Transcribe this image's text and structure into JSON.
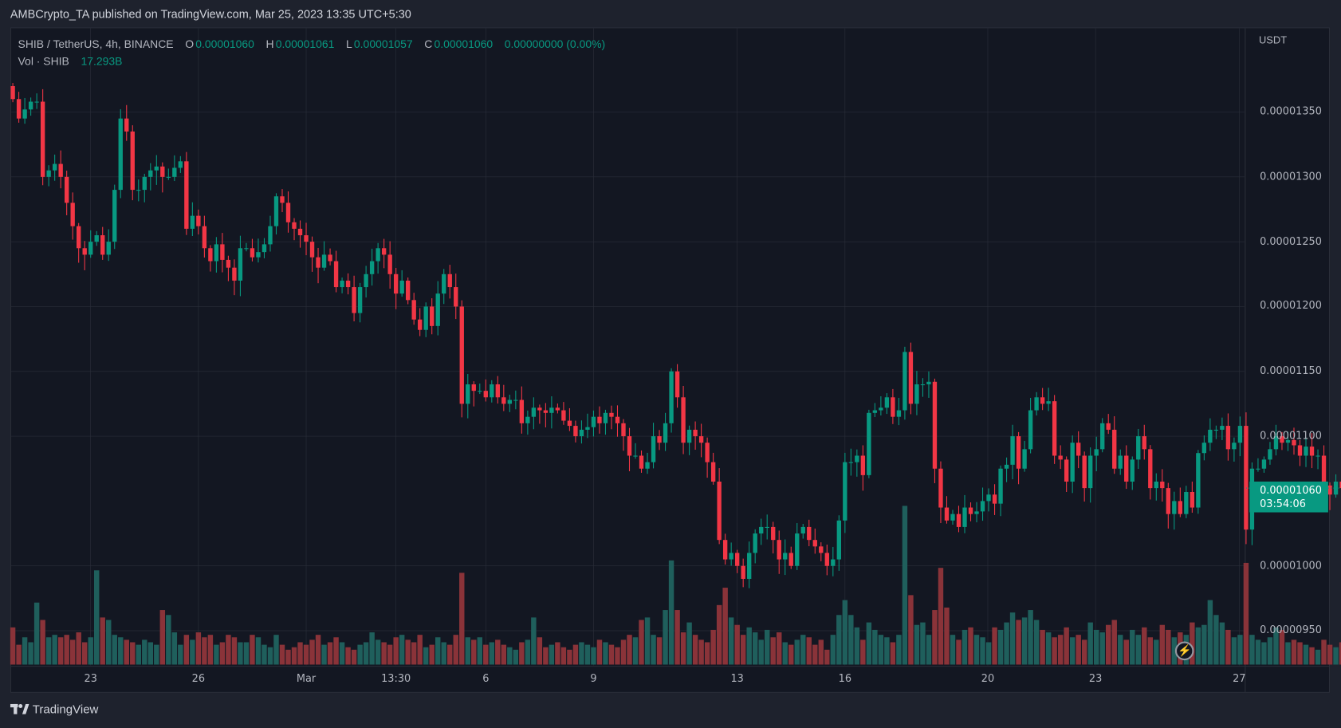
{
  "publish_line": "AMBCrypto_TA published on TradingView.com, Mar 25, 2023 13:35 UTC+5:30",
  "legend": {
    "symbol": "SHIB / TetherUS, 4h, BINANCE",
    "o_label": "O",
    "o": "0.00001060",
    "h_label": "H",
    "h": "0.00001061",
    "l_label": "L",
    "l": "0.00001057",
    "c_label": "C",
    "c": "0.00001060",
    "change": "0.00000000 (0.00%)",
    "vol_label": "Vol · SHIB",
    "vol": "17.293B"
  },
  "price_axis": {
    "currency": "USDT",
    "ticks": [
      "0.00001350",
      "0.00001300",
      "0.00001250",
      "0.00001200",
      "0.00001150",
      "0.00001100",
      "0.00001000",
      "0.00000950"
    ],
    "last_price": "0.00001060",
    "countdown": "03:54:06"
  },
  "time_axis": {
    "ticks": [
      "23",
      "26",
      "Mar",
      "13:30",
      "6",
      "9",
      "13",
      "16",
      "20",
      "23",
      "27"
    ]
  },
  "brand": "TradingView",
  "colors": {
    "up": "#089981",
    "down": "#f23645",
    "up_volume": "#1f5f5c",
    "down_volume": "#8a3339",
    "background": "#131722"
  },
  "icons": {
    "logo": "tradingview-logo-icon",
    "replay": "lightning-icon"
  },
  "chart_data": {
    "type": "candlestick",
    "price_unit": "1e-8 USDT",
    "interval": "4h",
    "ylim": [
      925,
      1405
    ],
    "first_open": 1370,
    "closes": [
      1360,
      1345,
      1352,
      1358,
      1358,
      1300,
      1305,
      1310,
      1300,
      1280,
      1262,
      1245,
      1240,
      1250,
      1255,
      1240,
      1250,
      1290,
      1345,
      1335,
      1290,
      1290,
      1300,
      1305,
      1308,
      1300,
      1300,
      1307,
      1312,
      1260,
      1270,
      1262,
      1245,
      1235,
      1248,
      1236,
      1230,
      1220,
      1245,
      1245,
      1238,
      1242,
      1248,
      1262,
      1285,
      1280,
      1265,
      1260,
      1255,
      1250,
      1238,
      1230,
      1240,
      1235,
      1215,
      1220,
      1215,
      1195,
      1215,
      1225,
      1235,
      1245,
      1240,
      1225,
      1210,
      1220,
      1205,
      1190,
      1182,
      1200,
      1185,
      1210,
      1225,
      1215,
      1200,
      1125,
      1140,
      1135,
      1135,
      1130,
      1140,
      1130,
      1125,
      1128,
      1128,
      1110,
      1115,
      1122,
      1120,
      1118,
      1122,
      1120,
      1112,
      1108,
      1100,
      1105,
      1107,
      1115,
      1110,
      1118,
      1115,
      1110,
      1100,
      1085,
      1085,
      1075,
      1080,
      1100,
      1095,
      1110,
      1150,
      1130,
      1095,
      1105,
      1100,
      1095,
      1080,
      1065,
      1020,
      1005,
      1010,
      1000,
      990,
      1010,
      1025,
      1030,
      1030,
      1020,
      1005,
      1010,
      1000,
      1025,
      1030,
      1020,
      1015,
      1010,
      1000,
      1005,
      1035,
      1080,
      1080,
      1085,
      1070,
      1118,
      1120,
      1122,
      1130,
      1115,
      1120,
      1165,
      1125,
      1140,
      1140,
      1142,
      1075,
      1045,
      1035,
      1040,
      1030,
      1045,
      1040,
      1042,
      1050,
      1055,
      1048,
      1075,
      1078,
      1100,
      1075,
      1090,
      1120,
      1130,
      1125,
      1127,
      1085,
      1082,
      1065,
      1095,
      1085,
      1060,
      1085,
      1090,
      1110,
      1105,
      1075,
      1085,
      1065,
      1082,
      1100,
      1090,
      1060,
      1065,
      1060,
      1040,
      1050,
      1040,
      1057,
      1045,
      1087,
      1095,
      1105,
      1105,
      1108,
      1090,
      1095,
      1108,
      1028,
      1075,
      1075,
      1082,
      1090,
      1100,
      1095,
      1097,
      1093,
      1085,
      1092,
      1085,
      1085,
      1062,
      1055,
      1065,
      1060,
      1068,
      1063,
      1060
    ],
    "volumes_b": [
      75,
      40,
      55,
      45,
      125,
      90,
      55,
      60,
      55,
      60,
      50,
      65,
      45,
      55,
      190,
      95,
      90,
      60,
      55,
      50,
      45,
      40,
      50,
      45,
      40,
      110,
      100,
      65,
      40,
      60,
      50,
      65,
      55,
      60,
      40,
      45,
      60,
      55,
      45,
      45,
      60,
      55,
      40,
      35,
      60,
      40,
      30,
      35,
      45,
      40,
      50,
      60,
      40,
      45,
      55,
      45,
      35,
      30,
      40,
      45,
      65,
      50,
      45,
      40,
      55,
      60,
      50,
      45,
      60,
      35,
      40,
      55,
      45,
      40,
      60,
      185,
      55,
      50,
      55,
      40,
      45,
      50,
      40,
      35,
      30,
      45,
      50,
      95,
      55,
      35,
      40,
      45,
      35,
      30,
      40,
      45,
      40,
      35,
      50,
      45,
      40,
      35,
      50,
      60,
      55,
      90,
      95,
      60,
      55,
      110,
      210,
      110,
      65,
      85,
      60,
      50,
      45,
      70,
      120,
      155,
      95,
      80,
      60,
      75,
      65,
      50,
      70,
      55,
      65,
      45,
      40,
      50,
      60,
      55,
      40,
      50,
      30,
      60,
      100,
      130,
      100,
      75,
      50,
      85,
      70,
      60,
      55,
      45,
      60,
      320,
      140,
      80,
      85,
      60,
      110,
      195,
      115,
      60,
      50,
      70,
      75,
      60,
      55,
      45,
      75,
      70,
      85,
      105,
      90,
      95,
      110,
      90,
      70,
      65,
      55,
      60,
      75,
      55,
      60,
      50,
      85,
      70,
      65,
      80,
      90,
      60,
      50,
      70,
      60,
      75,
      55,
      50,
      80,
      70,
      55,
      65,
      60,
      85,
      75,
      80,
      130,
      100,
      85,
      70,
      55,
      60,
      205,
      60,
      50,
      45,
      55,
      75,
      70,
      45,
      50,
      45,
      40,
      35,
      30,
      50,
      40,
      35,
      45,
      25,
      15,
      17.293
    ],
    "price_ticks": [
      1350,
      1300,
      1250,
      1200,
      1150,
      1100,
      1000,
      950
    ],
    "last_price": 1060
  }
}
